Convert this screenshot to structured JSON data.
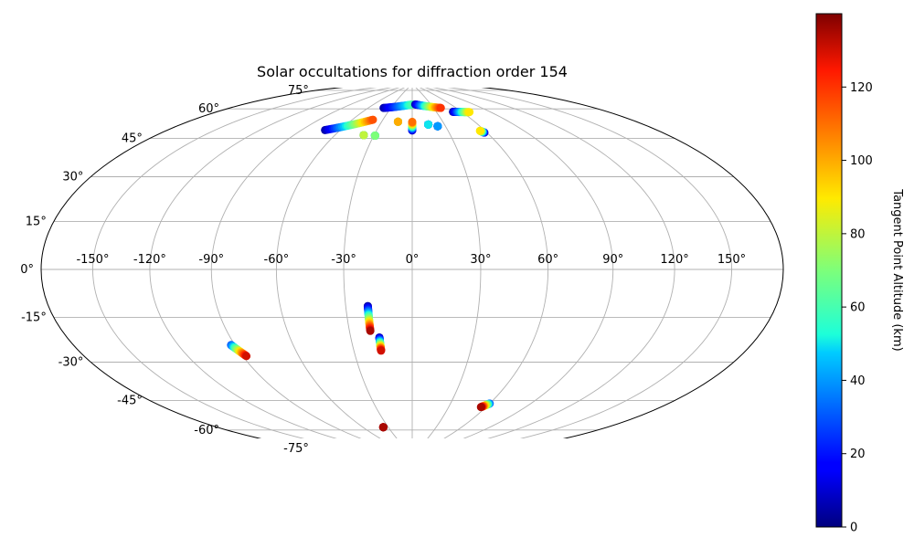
{
  "chart_data": {
    "type": "scatter",
    "projection": "hammer",
    "title": "Solar occultations for diffraction order 154",
    "grid": true,
    "lon_ticks": [
      "-150°",
      "-120°",
      "-90°",
      "-60°",
      "-30°",
      "0°",
      "30°",
      "60°",
      "90°",
      "120°",
      "150°"
    ],
    "lon_tick_values": [
      -150,
      -120,
      -90,
      -60,
      -30,
      0,
      30,
      60,
      90,
      120,
      150
    ],
    "lat_ticks": [
      "-75°",
      "-60°",
      "-45°",
      "-30°",
      "-15°",
      "0°",
      "15°",
      "30°",
      "45°",
      "60°",
      "75°"
    ],
    "lat_tick_values": [
      -75,
      -60,
      -45,
      -30,
      -15,
      0,
      15,
      30,
      45,
      60,
      75
    ],
    "colorbar": {
      "label": "Tangent Point Altitude (km)",
      "colormap": "jet",
      "min": 0,
      "max": 140,
      "ticks": [
        "0",
        "20",
        "40",
        "60",
        "80",
        "100",
        "120"
      ],
      "tick_values": [
        0,
        20,
        40,
        60,
        80,
        100,
        120
      ]
    },
    "series": [
      {
        "lon_start": -92,
        "lat_start": -31,
        "alt_start": 30,
        "lon_end": -88,
        "lat_end": -36,
        "alt_end": 130
      },
      {
        "lon_start": -20,
        "lat_start": -16,
        "alt_start": 5,
        "lon_end": -20,
        "lat_end": -27,
        "alt_end": 135
      },
      {
        "lon_start": -16,
        "lat_start": -30,
        "alt_start": 5,
        "lon_end": -16,
        "lat_end": -36,
        "alt_end": 130
      },
      {
        "lon_start": 60,
        "lat_start": -60,
        "alt_start": 30,
        "lon_end": 56,
        "lat_end": -62,
        "alt_end": 135
      },
      {
        "lon_start": -36,
        "lat_start": -73.5,
        "alt_start": 135,
        "lon_end": -36,
        "lat_end": -73.5,
        "alt_end": 135
      },
      {
        "lon_start": -72,
        "lat_start": 62,
        "alt_start": 5,
        "lon_end": -40,
        "lat_end": 69,
        "alt_end": 115
      },
      {
        "lon_start": -38,
        "lat_start": 61,
        "alt_start": 5,
        "lon_end": -38,
        "lat_end": 61,
        "alt_end": 80
      },
      {
        "lon_start": -29,
        "lat_start": 61,
        "alt_start": 5,
        "lon_end": -29,
        "lat_end": 61,
        "alt_end": 70
      },
      {
        "lon_start": -14,
        "lat_start": 68.5,
        "alt_start": 5,
        "lon_end": -14,
        "lat_end": 68.5,
        "alt_end": 100
      },
      {
        "lon_start": 0,
        "lat_start": 64,
        "alt_start": 5,
        "lon_end": 0,
        "lat_end": 68.5,
        "alt_end": 110
      },
      {
        "lon_start": 15,
        "lat_start": 67,
        "alt_start": 5,
        "lon_end": 15,
        "lat_end": 67,
        "alt_end": 50
      },
      {
        "lon_start": 23,
        "lat_start": 66,
        "alt_start": 5,
        "lon_end": 23,
        "lat_end": 66,
        "alt_end": 40
      },
      {
        "lon_start": 58,
        "lat_start": 61.5,
        "alt_start": 5,
        "lon_end": 56,
        "lat_end": 62.5,
        "alt_end": 90
      },
      {
        "lon_start": -40,
        "lat_start": 75.5,
        "alt_start": 5,
        "lon_end": 0,
        "lat_end": 78,
        "alt_end": 60
      },
      {
        "lon_start": 5,
        "lat_start": 78,
        "alt_start": 5,
        "lon_end": 40,
        "lat_end": 75.5,
        "alt_end": 120
      },
      {
        "lon_start": 50,
        "lat_start": 73,
        "alt_start": 5,
        "lon_end": 68,
        "lat_end": 72,
        "alt_end": 90
      }
    ]
  }
}
